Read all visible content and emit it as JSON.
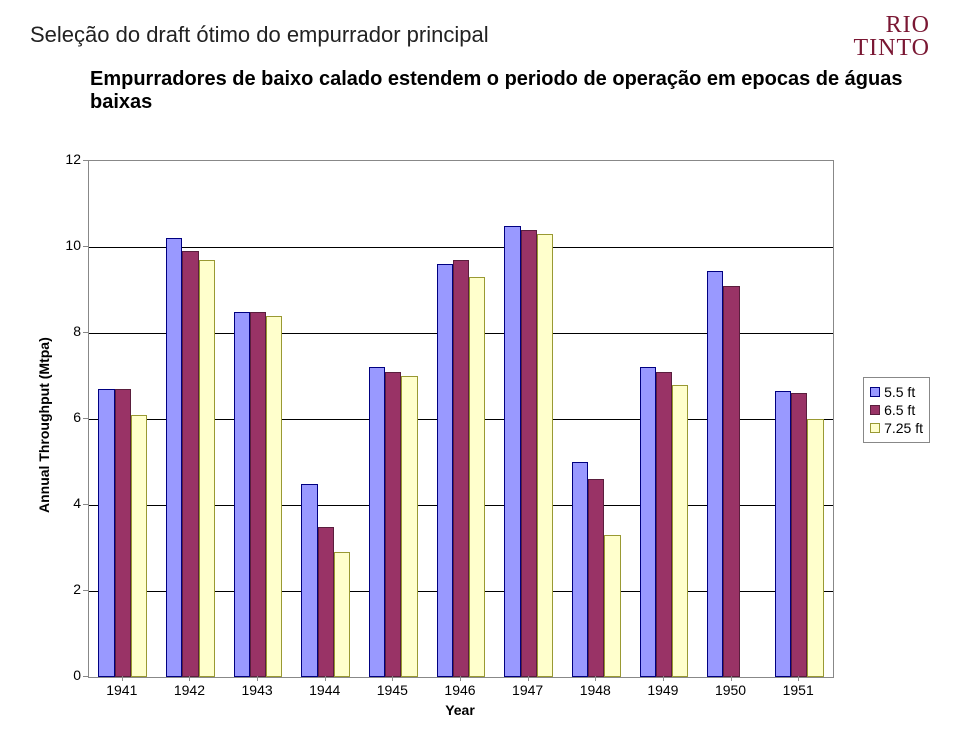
{
  "logo": {
    "line1": "RIO",
    "line2": "TINTO",
    "color": "#7a1733"
  },
  "title": "Seleção do draft ótimo do empurrador principal",
  "subtitle": "Empurradores de baixo calado estendem o periodo de operação em epocas de águas baixas",
  "chart": {
    "type": "grouped-bar",
    "y_label": "Annual Throughput (Mtpa)",
    "x_label": "Year",
    "y_min": 0,
    "y_max": 12,
    "y_tick_step": 2,
    "x_categories": [
      "1941",
      "1942",
      "1943",
      "1944",
      "1945",
      "1946",
      "1947",
      "1948",
      "1949",
      "1950",
      "1951"
    ],
    "series": [
      {
        "name": "5.5 ft",
        "color": "#9999ff",
        "border": "#000080",
        "values": [
          6.7,
          10.2,
          8.5,
          4.5,
          7.2,
          9.6,
          10.5,
          5.0,
          7.2,
          9.45,
          6.65
        ]
      },
      {
        "name": "6.5 ft",
        "color": "#993366",
        "border": "#5a1e3d",
        "values": [
          6.7,
          9.9,
          8.5,
          3.5,
          7.1,
          9.7,
          10.4,
          4.6,
          7.1,
          9.1,
          6.6
        ]
      },
      {
        "name": "7.25 ft",
        "color": "#ffffcc",
        "border": "#999933",
        "values": [
          6.1,
          9.7,
          8.4,
          2.9,
          7.0,
          9.3,
          10.3,
          3.3,
          6.8,
          0.0,
          6.0
        ]
      }
    ],
    "background": "#ffffff",
    "grid_color": "#000000",
    "axis_color": "#888888",
    "label_fontsize": 14,
    "tick_fontsize": 14
  }
}
